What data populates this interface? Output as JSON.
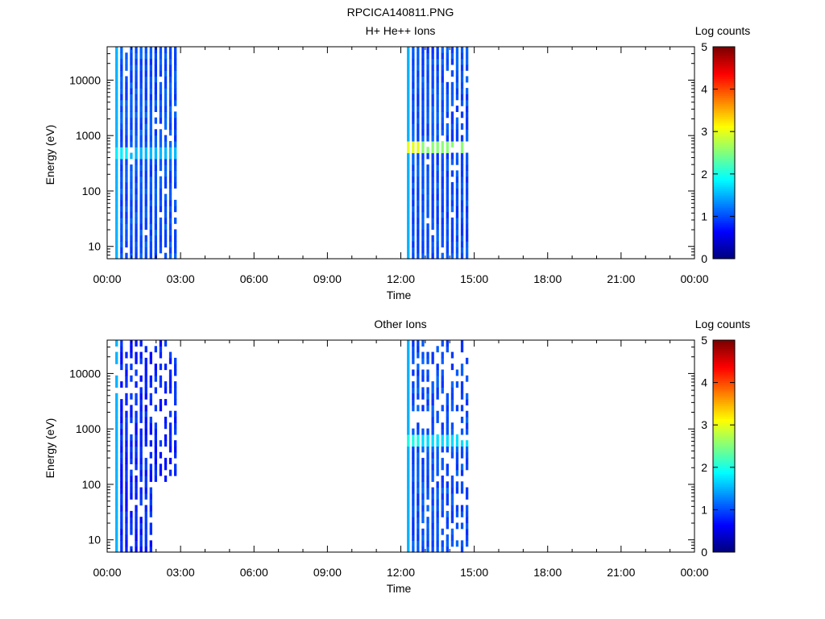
{
  "figure_title": "RPCICA140811.PNG",
  "colorbar": {
    "label": "Log counts",
    "ticks": [
      "0",
      "1",
      "2",
      "3",
      "4",
      "5"
    ],
    "range": [
      0,
      5
    ],
    "colormap": "jet"
  },
  "chart_data": [
    {
      "type": "heatmap",
      "title": "H+ He++ Ions",
      "xlabel": "Time",
      "ylabel": "Energy (eV)",
      "x_ticks": [
        "00:00",
        "03:00",
        "06:00",
        "09:00",
        "12:00",
        "15:00",
        "18:00",
        "21:00",
        "00:00"
      ],
      "x_range_hours": [
        0,
        24
      ],
      "y_ticks": [
        "10",
        "100",
        "1000",
        "10000"
      ],
      "y_range": [
        6,
        40000
      ],
      "y_scale": "log",
      "z_label": "Log counts",
      "z_range": [
        0,
        5
      ],
      "bursts": [
        {
          "start": "00:20",
          "end": "02:45",
          "dominant_log_counts": 1.0,
          "band_energy_eV": 500,
          "band_log_counts": 1.8
        },
        {
          "start": "12:15",
          "end": "14:40",
          "dominant_log_counts": 1.0,
          "band_energy_eV": 600,
          "band_log_counts": 3.0
        }
      ]
    },
    {
      "type": "heatmap",
      "title": "Other Ions",
      "xlabel": "Time",
      "ylabel": "Energy (eV)",
      "x_ticks": [
        "00:00",
        "03:00",
        "06:00",
        "09:00",
        "12:00",
        "15:00",
        "18:00",
        "21:00",
        "00:00"
      ],
      "x_range_hours": [
        0,
        24
      ],
      "y_ticks": [
        "10",
        "100",
        "1000",
        "10000"
      ],
      "y_range": [
        6,
        40000
      ],
      "y_scale": "log",
      "z_label": "Log counts",
      "z_range": [
        0,
        5
      ],
      "bursts": [
        {
          "start": "00:20",
          "end": "02:45",
          "dominant_log_counts": 0.8,
          "band_energy_eV": 0,
          "band_log_counts": 0
        },
        {
          "start": "12:15",
          "end": "14:40",
          "dominant_log_counts": 1.0,
          "band_energy_eV": 600,
          "band_log_counts": 2.0
        }
      ]
    }
  ]
}
